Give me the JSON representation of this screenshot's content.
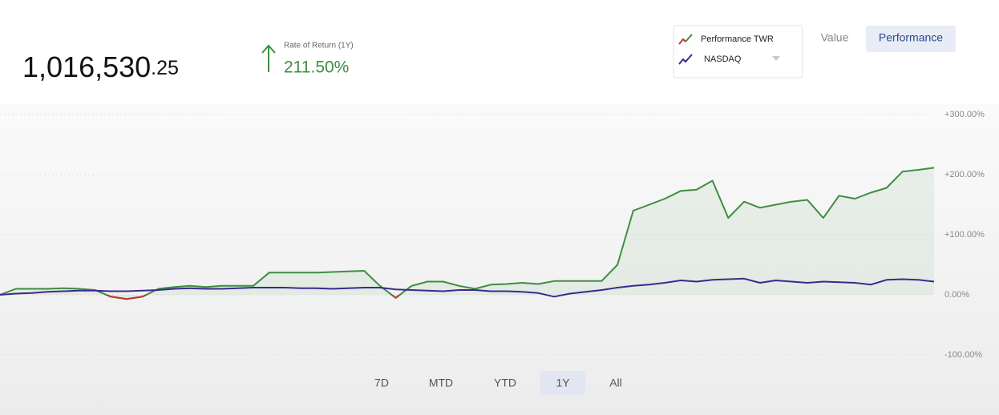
{
  "header": {
    "value_main": "1,016,530",
    "value_cents": ".25",
    "rate_label": "Rate of Return (1Y)",
    "rate_value": "211.50%"
  },
  "view_toggle": {
    "options": [
      "Value",
      "Performance"
    ],
    "active": 1
  },
  "range_buttons": {
    "options": [
      "7D",
      "MTD",
      "YTD",
      "1Y",
      "All"
    ],
    "active": 3
  },
  "chart_data": {
    "type": "line",
    "categories": [
      null,
      null,
      null,
      null,
      null,
      null,
      null,
      null,
      null,
      null,
      null,
      null,
      null,
      null,
      null,
      null,
      null,
      null,
      null,
      null,
      null,
      null,
      null,
      null,
      null,
      null,
      null,
      null,
      null,
      null,
      null,
      null,
      null,
      null,
      null,
      null,
      null,
      null,
      null,
      null,
      null,
      null,
      null,
      null,
      null,
      null,
      null,
      null,
      null,
      null,
      null,
      null,
      null,
      null,
      null,
      null,
      null,
      null,
      null,
      null
    ],
    "series": [
      {
        "name": "Performance TWR",
        "color": "#3e8e41",
        "negative_color": "#c0392b",
        "values": [
          0,
          10,
          10,
          10,
          11,
          10,
          8,
          -3,
          -7,
          -3,
          10,
          13,
          15,
          13,
          15,
          15,
          15,
          37,
          37,
          37,
          37,
          38,
          39,
          40,
          15,
          -5,
          15,
          22,
          22,
          15,
          10,
          17,
          18,
          20,
          18,
          23,
          23,
          23,
          23,
          50,
          140,
          150,
          160,
          173,
          175,
          190,
          128,
          155,
          145,
          150,
          155,
          158,
          128,
          165,
          160,
          170,
          178,
          205,
          208,
          211.5
        ]
      },
      {
        "name": "NASDAQ",
        "color": "#3b2a8f",
        "values": [
          0,
          2,
          3,
          5,
          6,
          7,
          7,
          6,
          6,
          7,
          8,
          10,
          11,
          10,
          10,
          11,
          12,
          12,
          12,
          11,
          11,
          10,
          11,
          12,
          12,
          9,
          8,
          7,
          6,
          8,
          8,
          6,
          6,
          5,
          3,
          -3,
          2,
          5,
          8,
          12,
          15,
          17,
          20,
          24,
          22,
          25,
          26,
          27,
          20,
          24,
          22,
          20,
          22,
          21,
          20,
          17,
          25,
          26,
          25,
          22
        ]
      }
    ],
    "ylim": [
      -116,
      324
    ],
    "yticks": [
      {
        "value": 300,
        "label": "+300.00%"
      },
      {
        "value": 200,
        "label": "+200.00%"
      },
      {
        "value": 100,
        "label": "+100.00%"
      },
      {
        "value": 0,
        "label": "0.00%"
      },
      {
        "value": -100,
        "label": "-100.00%"
      }
    ],
    "grid": true,
    "legend": "top-right"
  }
}
